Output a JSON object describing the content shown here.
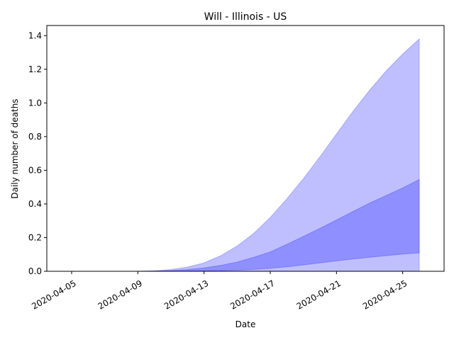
{
  "chart_data": {
    "type": "area",
    "title": "Will - Illinois - US",
    "xlabel": "Date",
    "ylabel": "Daily number of deaths",
    "x": [
      "2020-04-04",
      "2020-04-05",
      "2020-04-06",
      "2020-04-07",
      "2020-04-08",
      "2020-04-09",
      "2020-04-10",
      "2020-04-11",
      "2020-04-12",
      "2020-04-13",
      "2020-04-14",
      "2020-04-15",
      "2020-04-16",
      "2020-04-17",
      "2020-04-18",
      "2020-04-19",
      "2020-04-20",
      "2020-04-21",
      "2020-04-22",
      "2020-04-23",
      "2020-04-24",
      "2020-04-25",
      "2020-04-26"
    ],
    "xlim": [
      "2020-04-03T12:00",
      "2020-04-27T12:00"
    ],
    "xticks": [
      "2020-04-05",
      "2020-04-09",
      "2020-04-13",
      "2020-04-17",
      "2020-04-21",
      "2020-04-25"
    ],
    "ylim": [
      0,
      1.46
    ],
    "yticks": [
      "0.0",
      "0.2",
      "0.4",
      "0.6",
      "0.8",
      "1.0",
      "1.2",
      "1.4"
    ],
    "grid": false,
    "series": [
      {
        "color": "#8080ff",
        "upper": [
          0,
          0,
          0,
          0,
          0,
          0,
          0.003,
          0.01,
          0.025,
          0.05,
          0.092,
          0.15,
          0.225,
          0.32,
          0.43,
          0.55,
          0.68,
          0.815,
          0.95,
          1.075,
          1.19,
          1.29,
          1.38
        ],
        "lower": [
          0,
          0,
          0,
          0,
          0,
          0,
          0,
          0,
          0,
          0,
          0,
          0,
          0,
          0,
          0,
          0,
          0,
          0,
          0,
          0,
          0,
          0,
          0
        ]
      },
      {
        "color": "#6060ff",
        "upper": [
          0,
          0,
          0,
          0,
          0,
          0,
          0.001,
          0.004,
          0.01,
          0.02,
          0.035,
          0.055,
          0.083,
          0.115,
          0.16,
          0.207,
          0.255,
          0.305,
          0.355,
          0.405,
          0.45,
          0.495,
          0.545
        ],
        "lower": [
          0,
          0,
          0,
          0,
          0,
          0,
          0,
          0,
          0.001,
          0.002,
          0.004,
          0.007,
          0.011,
          0.018,
          0.027,
          0.038,
          0.05,
          0.062,
          0.073,
          0.083,
          0.093,
          0.102,
          0.11
        ]
      }
    ]
  }
}
